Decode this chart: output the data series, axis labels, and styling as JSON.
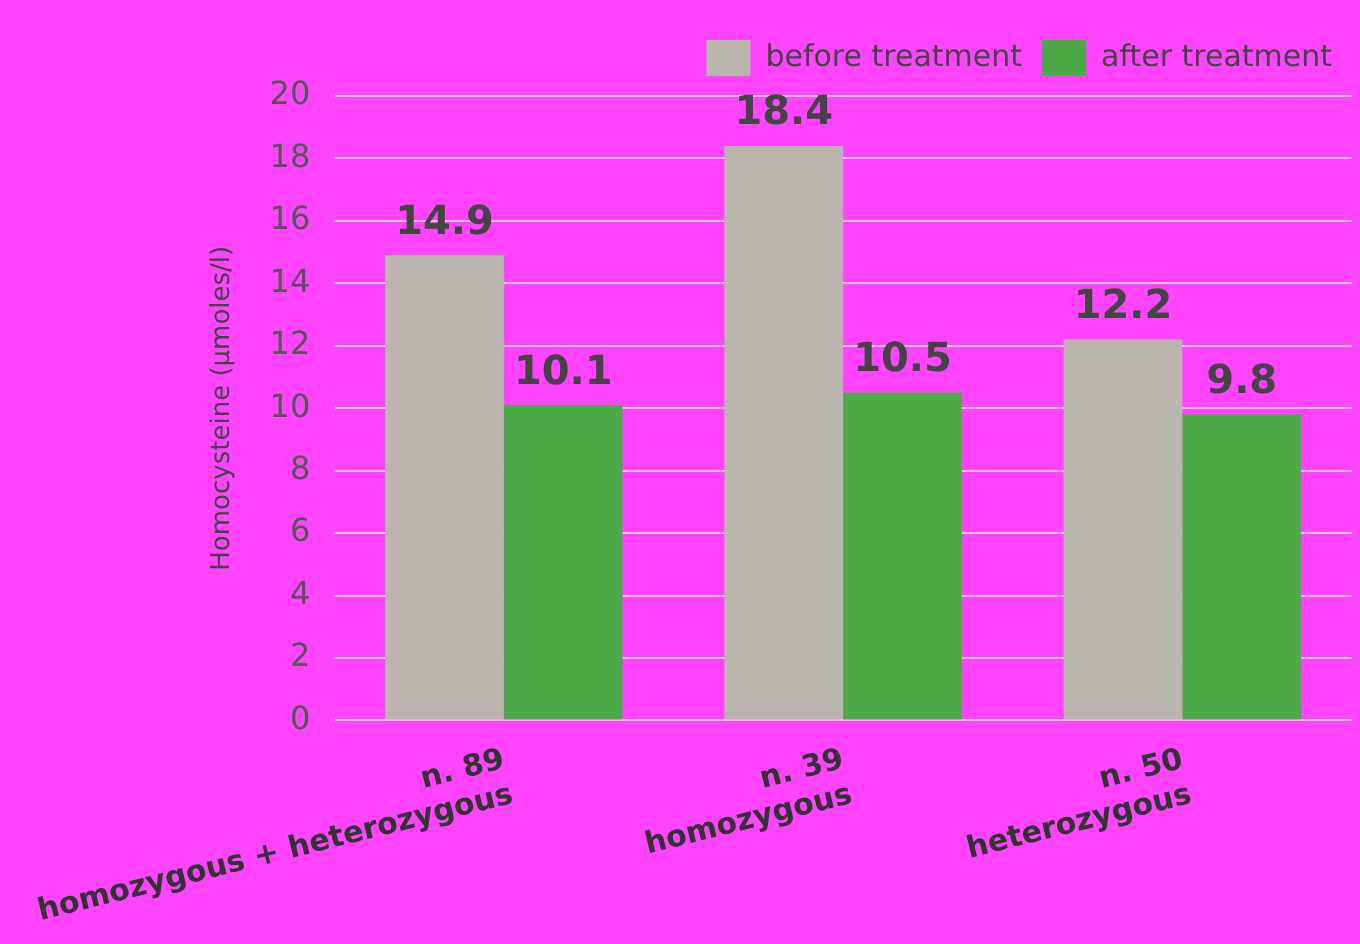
{
  "chart_data": {
    "type": "bar",
    "ylabel": "Homocysteine (µmoles/l)",
    "categories": [
      "n. 89\nhomozygous + heterozygous",
      "n. 39\nhomozygous",
      "n. 50\nheterozygous"
    ],
    "series": [
      {
        "name": "before treatment",
        "color": "#bab5ad",
        "values": [
          14.9,
          18.4,
          12.2
        ]
      },
      {
        "name": "after treatment",
        "color": "#4caa48",
        "values": [
          10.1,
          10.5,
          9.8
        ]
      }
    ],
    "ylim": [
      0,
      20
    ],
    "yticks": [
      0,
      2,
      4,
      6,
      8,
      10,
      12,
      14,
      16,
      18,
      20
    ],
    "grid": "y",
    "legend": "top right",
    "data_labels": true
  }
}
